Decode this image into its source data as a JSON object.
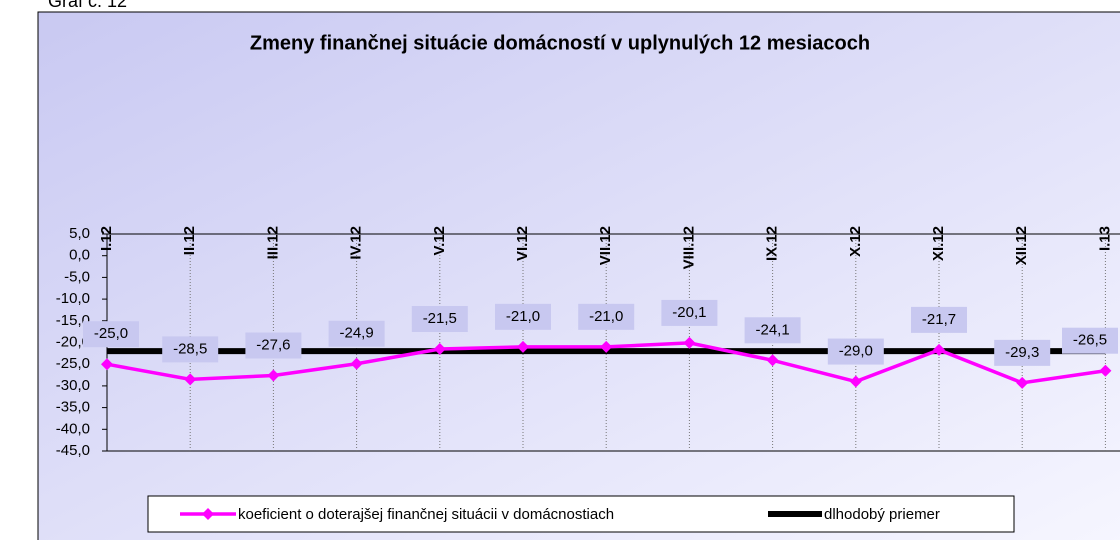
{
  "caption": "Graf č. 12",
  "chart_data": {
    "type": "line",
    "title": "Zmeny finančnej situácie domácností v uplynulých 12 mesiacoch",
    "categories": [
      "I.12",
      "II.12",
      "III.12",
      "IV.12",
      "V.12",
      "VI.12",
      "VII.12",
      "VIII.12",
      "IX.12",
      "X.12",
      "XI.12",
      "XII.12",
      "I.13"
    ],
    "series": [
      {
        "name": "koeficient o doterajšej finančnej situácii v domácnostiach",
        "color": "#ff00ff",
        "values": [
          -25.0,
          -28.5,
          -27.6,
          -24.9,
          -21.5,
          -21.0,
          -21.0,
          -20.1,
          -24.1,
          -29.0,
          -21.7,
          -29.3,
          -26.5
        ],
        "value_labels": [
          "-25,0",
          "-28,5",
          "-27,6",
          "-24,9",
          "-21,5",
          "-21,0",
          "-21,0",
          "-20,1",
          "-24,1",
          "-29,0",
          "-21,7",
          "-29,3",
          "-26,5"
        ]
      },
      {
        "name": "dlhodobý priemer",
        "color": "#000000",
        "values": [
          -22,
          -22,
          -22,
          -22,
          -22,
          -22,
          -22,
          -22,
          -22,
          -22,
          -22,
          -22,
          -22
        ]
      }
    ],
    "ylim": [
      -45,
      5
    ],
    "yticks": [
      {
        "value": 5,
        "label": "5,0"
      },
      {
        "value": 0,
        "label": "0,0"
      },
      {
        "value": -5,
        "label": "-5,0"
      },
      {
        "value": -10,
        "label": "-10,0"
      },
      {
        "value": -15,
        "label": "-15,0"
      },
      {
        "value": -20,
        "label": "-20,0"
      },
      {
        "value": -25,
        "label": "-25,0"
      },
      {
        "value": -30,
        "label": "-30,0"
      },
      {
        "value": -35,
        "label": "-35,0"
      },
      {
        "value": -40,
        "label": "-40,0"
      },
      {
        "value": -45,
        "label": "-45,0"
      }
    ],
    "grid": true,
    "legend": "bottom"
  }
}
